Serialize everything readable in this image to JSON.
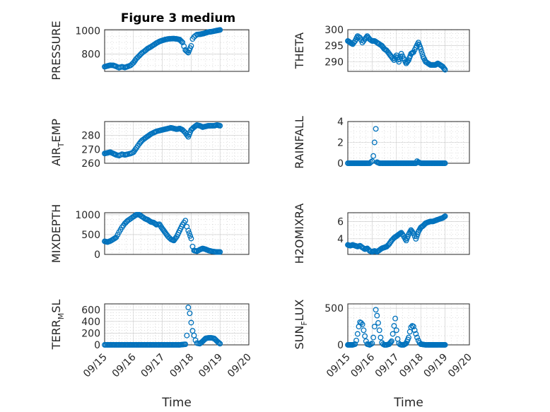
{
  "chart_data": [
    {
      "type": "scatter",
      "title": "Figure 3 medium",
      "ylabel": {
        "main": "PRESSURE"
      },
      "ylim": [
        650,
        1010
      ],
      "yticks": [
        800,
        1000
      ],
      "xlim": [
        "09/15",
        "09/20"
      ],
      "xticklabels": [],
      "xlabel": "",
      "series": [
        {
          "x": [
            0,
            0.1,
            0.2,
            0.3,
            0.4,
            0.5,
            0.6,
            0.7,
            0.8,
            0.9,
            1.0,
            1.1,
            1.2,
            1.3,
            1.4,
            1.5,
            1.6,
            1.7,
            1.8,
            1.9,
            2.0,
            2.1,
            2.2,
            2.3,
            2.4,
            2.5,
            2.6,
            2.7,
            2.8,
            2.9,
            3.0,
            3.05,
            3.1,
            3.15,
            3.2,
            3.3,
            3.4,
            3.5,
            3.6,
            3.7,
            3.8,
            3.9,
            4.0
          ],
          "y": [
            690,
            697,
            703,
            702,
            693,
            682,
            690,
            683,
            692,
            702,
            725,
            760,
            785,
            810,
            828,
            848,
            862,
            878,
            895,
            908,
            917,
            925,
            930,
            932,
            933,
            930,
            925,
            900,
            835,
            812,
            870,
            930,
            948,
            958,
            968,
            970,
            975,
            982,
            990,
            993,
            998,
            1003,
            1008
          ]
        }
      ]
    },
    {
      "type": "scatter",
      "ylabel": {
        "main": "THETA"
      },
      "ylim": [
        287,
        300
      ],
      "yticks": [
        290,
        295,
        300
      ],
      "xlim": [
        "09/15",
        "09/20"
      ],
      "xticklabels": [],
      "xlabel": "",
      "series": [
        {
          "x": [
            0,
            0.1,
            0.2,
            0.3,
            0.4,
            0.5,
            0.6,
            0.7,
            0.8,
            0.9,
            1.0,
            1.1,
            1.2,
            1.3,
            1.4,
            1.5,
            1.6,
            1.7,
            1.8,
            1.9,
            2.0,
            2.1,
            2.2,
            2.3,
            2.4,
            2.5,
            2.6,
            2.7,
            2.8,
            2.9,
            3.0,
            3.1,
            3.2,
            3.3,
            3.4,
            3.5,
            3.6,
            3.7,
            3.8,
            3.9,
            4.0
          ],
          "y": [
            296.5,
            296,
            295.5,
            296.5,
            298,
            297.5,
            296,
            297,
            298,
            297,
            296.5,
            296.5,
            296,
            295.5,
            295,
            294,
            293.5,
            292.5,
            291.5,
            290.5,
            292,
            290,
            292.5,
            291,
            289.5,
            290.5,
            292.5,
            293,
            294.5,
            296,
            294,
            291.5,
            290,
            289.5,
            289,
            289,
            289,
            289.5,
            289,
            288.5,
            287.5
          ]
        }
      ]
    },
    {
      "type": "scatter",
      "ylabel": {
        "main": "AIR",
        "sub": "T",
        "tail": "EMP"
      },
      "ylim": [
        260,
        290
      ],
      "yticks": [
        260,
        270,
        280
      ],
      "xlim": [
        "09/15",
        "09/20"
      ],
      "xticklabels": [],
      "xlabel": "",
      "series": [
        {
          "x": [
            0,
            0.1,
            0.2,
            0.3,
            0.4,
            0.5,
            0.6,
            0.7,
            0.8,
            0.9,
            1.0,
            1.1,
            1.2,
            1.3,
            1.4,
            1.5,
            1.6,
            1.7,
            1.8,
            1.9,
            2.0,
            2.1,
            2.2,
            2.3,
            2.4,
            2.5,
            2.6,
            2.7,
            2.8,
            2.9,
            3.0,
            3.1,
            3.2,
            3.3,
            3.4,
            3.5,
            3.6,
            3.7,
            3.8,
            3.9,
            4.0
          ],
          "y": [
            267,
            267.5,
            268,
            267,
            266,
            265.5,
            266.5,
            266,
            266.5,
            267,
            268,
            271,
            274,
            276.5,
            278,
            279.5,
            281,
            282,
            283,
            283.5,
            284,
            284.5,
            285,
            285.5,
            285,
            284.5,
            285,
            284,
            282,
            279,
            284,
            286,
            287.5,
            287,
            286,
            286.5,
            287,
            287,
            287,
            287.5,
            287
          ]
        }
      ]
    },
    {
      "type": "scatter",
      "ylabel": {
        "main": "RAINFALL"
      },
      "ylim": [
        0,
        4
      ],
      "yticks": [
        0,
        2,
        4
      ],
      "xlim": [
        "09/15",
        "09/20"
      ],
      "xticklabels": [],
      "xlabel": "",
      "series": [
        {
          "x": [
            0,
            0.2,
            0.4,
            0.6,
            0.8,
            0.9,
            1.0,
            1.05,
            1.1,
            1.15,
            1.2,
            1.3,
            1.4,
            1.6,
            1.8,
            2.0,
            2.2,
            2.4,
            2.6,
            2.8,
            2.85,
            2.9,
            3.0,
            3.2,
            3.4,
            3.6,
            3.8,
            4.0
          ],
          "y": [
            0,
            0,
            0,
            0,
            0,
            0,
            0.2,
            0.7,
            2.0,
            3.3,
            0.1,
            0,
            0,
            0,
            0,
            0,
            0,
            0,
            0,
            0,
            0.2,
            0.1,
            0,
            0,
            0,
            0,
            0,
            0
          ]
        }
      ]
    },
    {
      "type": "scatter",
      "ylabel": {
        "main": "MIXDEPTH"
      },
      "ylim": [
        0,
        1050
      ],
      "yticks": [
        0,
        500,
        1000
      ],
      "xlim": [
        "09/15",
        "09/20"
      ],
      "xticklabels": [],
      "xlabel": "",
      "series": [
        {
          "x": [
            0,
            0.1,
            0.2,
            0.3,
            0.4,
            0.5,
            0.6,
            0.7,
            0.8,
            0.9,
            1.0,
            1.1,
            1.2,
            1.3,
            1.4,
            1.5,
            1.6,
            1.7,
            1.8,
            1.9,
            2.0,
            2.1,
            2.2,
            2.3,
            2.4,
            2.5,
            2.6,
            2.7,
            2.8,
            2.85,
            2.9,
            3.0,
            3.05,
            3.1,
            3.2,
            3.3,
            3.4,
            3.5,
            3.6,
            3.7,
            3.8,
            3.9,
            4.0
          ],
          "y": [
            330,
            310,
            340,
            380,
            430,
            560,
            680,
            780,
            850,
            900,
            950,
            1000,
            1000,
            950,
            900,
            870,
            820,
            800,
            750,
            760,
            650,
            550,
            450,
            380,
            350,
            450,
            600,
            750,
            850,
            700,
            600,
            400,
            200,
            100,
            80,
            120,
            150,
            130,
            100,
            80,
            70,
            60,
            60
          ]
        }
      ]
    },
    {
      "type": "scatter",
      "ylabel": {
        "main": "H2OMIXRA"
      },
      "ylim": [
        2.2,
        7
      ],
      "yticks": [
        4,
        6
      ],
      "xlim": [
        "09/15",
        "09/20"
      ],
      "xticklabels": [],
      "xlabel": "",
      "series": [
        {
          "x": [
            0,
            0.1,
            0.2,
            0.3,
            0.4,
            0.5,
            0.6,
            0.7,
            0.8,
            0.9,
            1.0,
            1.1,
            1.2,
            1.3,
            1.4,
            1.5,
            1.6,
            1.7,
            1.8,
            1.9,
            2.0,
            2.1,
            2.2,
            2.3,
            2.4,
            2.5,
            2.6,
            2.7,
            2.8,
            2.9,
            3.0,
            3.1,
            3.2,
            3.3,
            3.4,
            3.5,
            3.6,
            3.7,
            3.8,
            3.9,
            4.0
          ],
          "y": [
            3.3,
            3.2,
            3.3,
            3.2,
            3.1,
            3.2,
            3.0,
            2.8,
            2.9,
            2.6,
            2.5,
            2.6,
            2.5,
            2.7,
            2.9,
            3.0,
            3.1,
            3.4,
            3.8,
            4.1,
            4.3,
            4.5,
            4.7,
            4.3,
            3.8,
            4.5,
            5.0,
            4.6,
            4.0,
            4.8,
            5.3,
            5.5,
            5.8,
            5.9,
            6.0,
            6.0,
            6.1,
            6.2,
            6.3,
            6.4,
            6.6
          ]
        }
      ]
    },
    {
      "type": "scatter",
      "ylabel": {
        "main": "TERR",
        "sub": "M",
        "tail": "SL"
      },
      "ylim": [
        0,
        700
      ],
      "yticks": [
        0,
        200,
        400,
        600
      ],
      "xlim": [
        "09/15",
        "09/20"
      ],
      "xticklabels": [
        "09/15",
        "09/16",
        "09/17",
        "09/18",
        "09/19",
        "09/20"
      ],
      "xlabel": "Time",
      "series": [
        {
          "x": [
            0,
            0.2,
            0.4,
            0.6,
            0.8,
            1.0,
            1.2,
            1.4,
            1.6,
            1.8,
            2.0,
            2.2,
            2.4,
            2.6,
            2.8,
            2.85,
            2.9,
            2.95,
            3.0,
            3.05,
            3.1,
            3.15,
            3.2,
            3.3,
            3.4,
            3.5,
            3.6,
            3.7,
            3.8,
            3.9,
            4.0
          ],
          "y": [
            0,
            0,
            0,
            0,
            0,
            0,
            0,
            0,
            0,
            0,
            0,
            0,
            0,
            0,
            10,
            160,
            640,
            540,
            380,
            240,
            160,
            80,
            30,
            20,
            60,
            110,
            120,
            120,
            110,
            60,
            20
          ]
        }
      ]
    },
    {
      "type": "scatter",
      "ylabel": {
        "main": "SUN",
        "sub": "F",
        "tail": "LUX"
      },
      "ylim": [
        0,
        560
      ],
      "yticks": [
        0,
        500
      ],
      "xlim": [
        "09/15",
        "09/20"
      ],
      "xticklabels": [
        "09/15",
        "09/16",
        "09/17",
        "09/18",
        "09/19",
        "09/20"
      ],
      "xlabel": "Time",
      "series": [
        {
          "x": [
            0,
            0.1,
            0.2,
            0.3,
            0.35,
            0.4,
            0.45,
            0.5,
            0.55,
            0.6,
            0.65,
            0.7,
            0.75,
            0.8,
            0.9,
            1.0,
            1.05,
            1.1,
            1.15,
            1.2,
            1.25,
            1.3,
            1.35,
            1.4,
            1.45,
            1.5,
            1.6,
            1.7,
            1.8,
            1.85,
            1.9,
            1.95,
            2.0,
            2.05,
            2.1,
            2.15,
            2.2,
            2.3,
            2.4,
            2.5,
            2.55,
            2.6,
            2.65,
            2.7,
            2.75,
            2.8,
            2.85,
            2.9,
            2.95,
            3.0,
            3.1,
            3.2,
            3.3,
            3.4,
            3.5,
            3.6,
            3.7,
            3.8,
            3.9,
            4.0
          ],
          "y": [
            0,
            0,
            0,
            10,
            60,
            150,
            250,
            310,
            300,
            280,
            200,
            120,
            50,
            10,
            0,
            20,
            100,
            250,
            480,
            400,
            300,
            200,
            100,
            30,
            10,
            0,
            0,
            10,
            50,
            150,
            260,
            360,
            200,
            80,
            20,
            5,
            0,
            0,
            20,
            100,
            180,
            240,
            260,
            250,
            200,
            150,
            100,
            60,
            30,
            10,
            5,
            0,
            0,
            0,
            0,
            0,
            0,
            0,
            0,
            0
          ]
        }
      ]
    }
  ]
}
